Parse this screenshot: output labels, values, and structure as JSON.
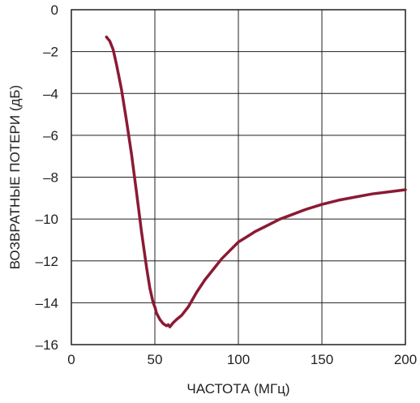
{
  "chart_data": {
    "type": "line",
    "title": "",
    "xlabel": "ЧАСТОТА (МГц)",
    "ylabel": "ВОЗВРАТНЫЕ ПОТЕРИ (дБ)",
    "xlim": [
      0,
      200
    ],
    "ylim": [
      -16,
      0
    ],
    "x_ticks": [
      "0",
      "50",
      "100",
      "150",
      "200"
    ],
    "y_ticks": [
      "0",
      "–2",
      "–4",
      "–6",
      "–8",
      "–10",
      "–12",
      "–14",
      "–16"
    ],
    "grid": true,
    "series": [
      {
        "color": "#8b1a33",
        "x": [
          21,
          23,
          25,
          27,
          30,
          33,
          36,
          39,
          42,
          45,
          47,
          49,
          50,
          51,
          53,
          55,
          57,
          58,
          59,
          61,
          63,
          66,
          70,
          75,
          80,
          85,
          90,
          95,
          100,
          105,
          110,
          115,
          120,
          125,
          130,
          140,
          150,
          160,
          170,
          180,
          190,
          200
        ],
        "y": [
          -1.3,
          -1.5,
          -1.9,
          -2.6,
          -3.8,
          -5.3,
          -6.9,
          -8.7,
          -10.6,
          -12.3,
          -13.3,
          -14.0,
          -14.2,
          -14.5,
          -14.8,
          -15.0,
          -15.1,
          -15.05,
          -15.15,
          -14.95,
          -14.8,
          -14.6,
          -14.2,
          -13.5,
          -12.9,
          -12.4,
          -11.9,
          -11.5,
          -11.1,
          -10.85,
          -10.6,
          -10.4,
          -10.2,
          -10.0,
          -9.85,
          -9.55,
          -9.3,
          -9.1,
          -8.95,
          -8.8,
          -8.7,
          -8.6
        ]
      }
    ]
  }
}
